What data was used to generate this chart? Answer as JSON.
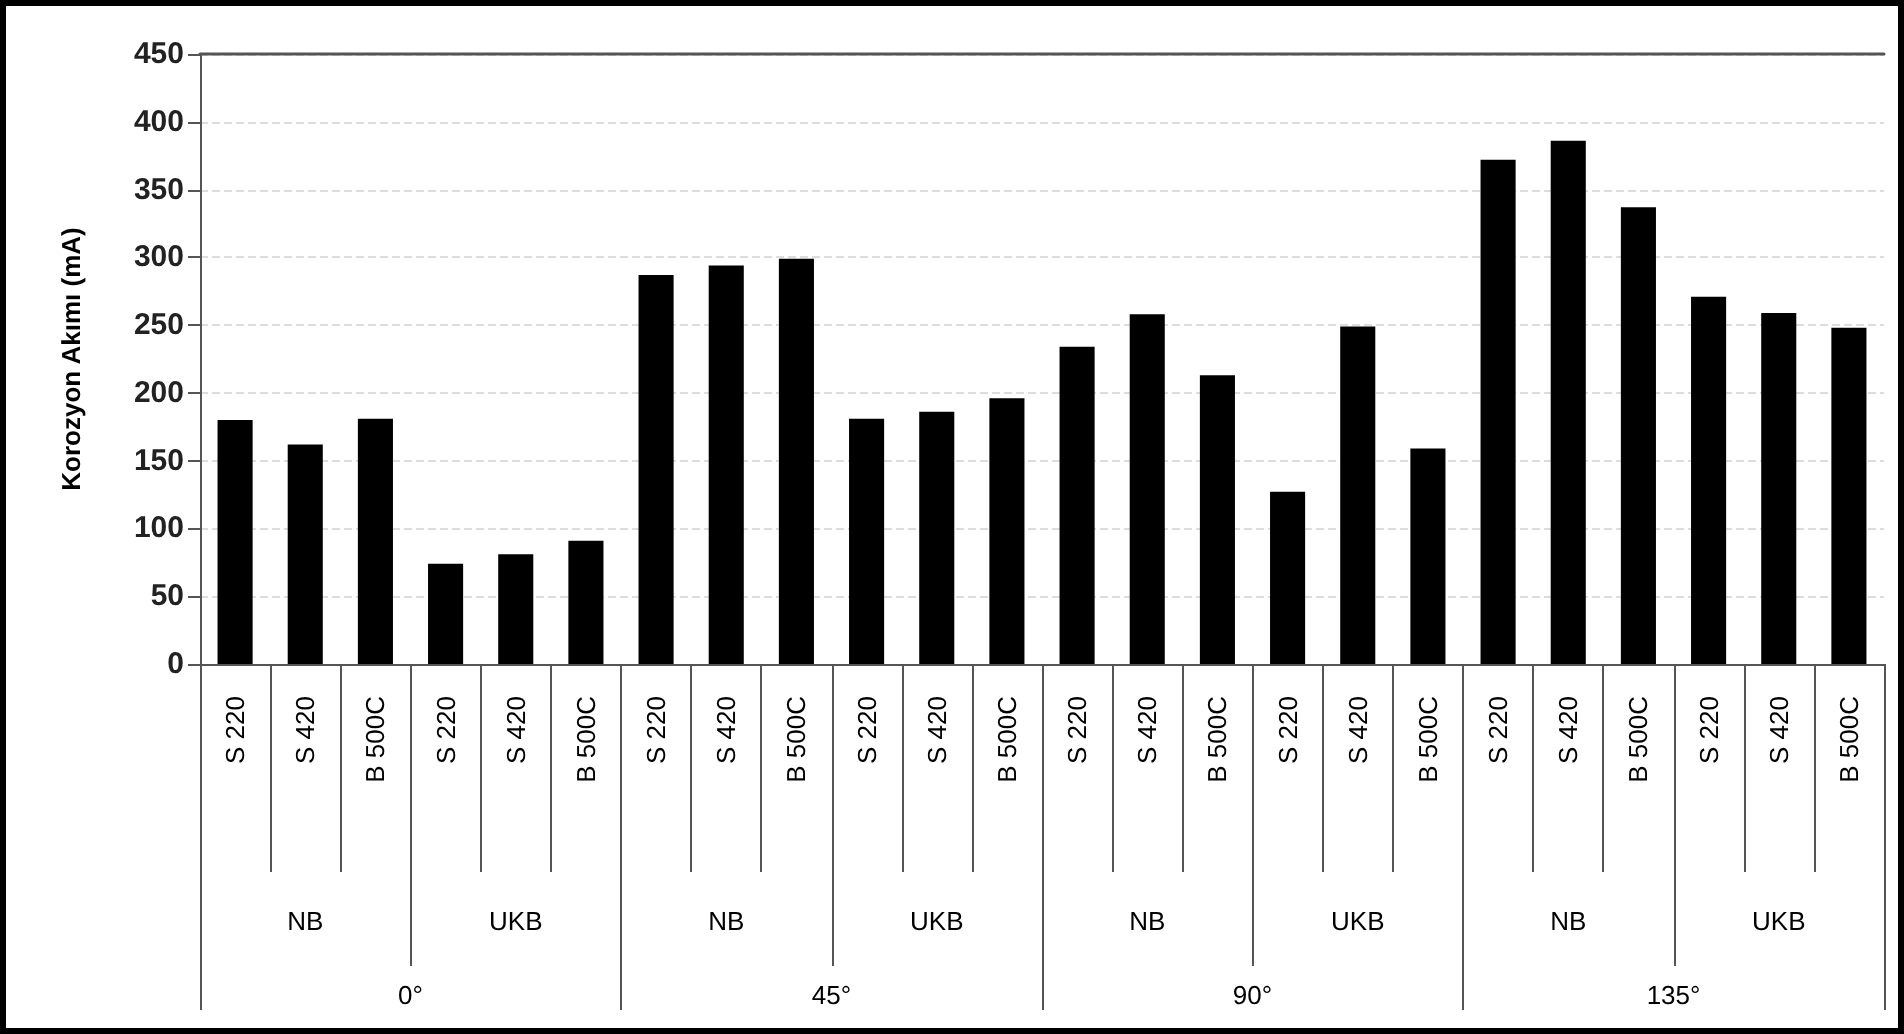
{
  "chart_data": {
    "type": "bar",
    "ylabel": "Korozyon Akımı (mA)",
    "categories": [
      "S 220",
      "S 420",
      "B 500C",
      "S 220",
      "S 420",
      "B 500C",
      "S 220",
      "S 420",
      "B 500C",
      "S 220",
      "S 420",
      "B 500C",
      "S 220",
      "S 420",
      "B 500C",
      "S 220",
      "S 420",
      "B 500C",
      "S 220",
      "S 420",
      "B 500C",
      "S 220",
      "S 420",
      "B 500C"
    ],
    "values": [
      180,
      162,
      181,
      74,
      81,
      91,
      287,
      294,
      299,
      181,
      186,
      196,
      234,
      258,
      213,
      127,
      249,
      159,
      372,
      386,
      337,
      271,
      259,
      248
    ],
    "color": "#000000",
    "ylim": [
      0,
      450
    ],
    "yticks": [
      0,
      50,
      100,
      150,
      200,
      250,
      300,
      350,
      400,
      450
    ],
    "grid": "y",
    "annotations": [
      "NB",
      "UKB",
      "NB",
      "UKB",
      "NB",
      "UKB",
      "NB",
      "UKB",
      "0°",
      "45°",
      "90°",
      "135°"
    ]
  }
}
